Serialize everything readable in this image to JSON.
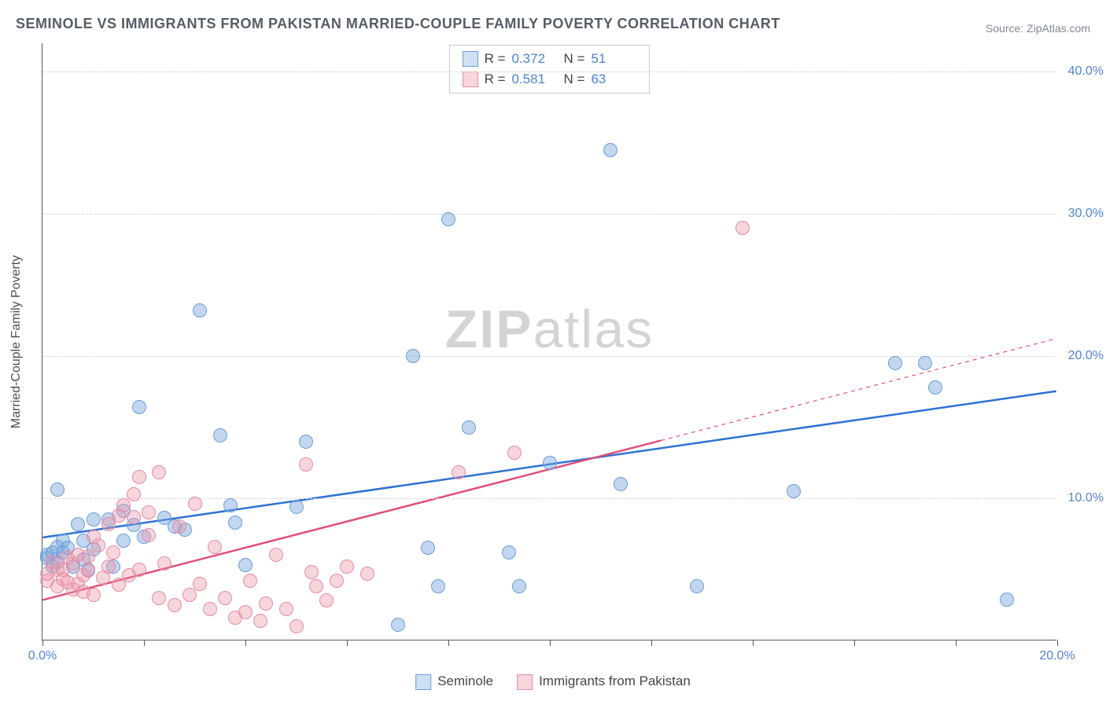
{
  "title": "SEMINOLE VS IMMIGRANTS FROM PAKISTAN MARRIED-COUPLE FAMILY POVERTY CORRELATION CHART",
  "source": "Source: ZipAtlas.com",
  "watermark_prefix": "ZIP",
  "watermark_suffix": "atlas",
  "ylabel": "Married-Couple Family Poverty",
  "chart": {
    "type": "scatter",
    "xlim": [
      0,
      20
    ],
    "ylim": [
      0,
      42
    ],
    "x_ticks_labeled": [
      0,
      20
    ],
    "x_ticks_minor": [
      2,
      4,
      6,
      8,
      10,
      12,
      14,
      16,
      18
    ],
    "y_ticks": [
      10,
      20,
      30,
      40
    ],
    "x_tick_format": "pct1",
    "y_tick_format": "pct1",
    "grid_color": "#d8d8d8",
    "marker_radius": 9,
    "series": [
      {
        "name": "Seminole",
        "fill": "rgba(120,165,220,0.45)",
        "stroke": "#6a9ed8",
        "swatch_fill": "#cfe0f4",
        "swatch_stroke": "#6a9ed8",
        "R": 0.372,
        "N": 51,
        "trend": {
          "x1": 0,
          "y1": 7.2,
          "x2": 20,
          "y2": 17.5,
          "color": "#2d72d2",
          "width": 2.5,
          "dashed_from_x": null
        },
        "points": [
          [
            0.1,
            6.0
          ],
          [
            0.1,
            5.8
          ],
          [
            0.2,
            6.2
          ],
          [
            0.3,
            5.5
          ],
          [
            0.3,
            6.6
          ],
          [
            0.3,
            10.6
          ],
          [
            0.4,
            7.0
          ],
          [
            0.4,
            6.2
          ],
          [
            0.5,
            6.5
          ],
          [
            0.6,
            5.2
          ],
          [
            0.7,
            8.2
          ],
          [
            0.8,
            5.7
          ],
          [
            0.8,
            7.0
          ],
          [
            0.9,
            5.0
          ],
          [
            1.0,
            6.4
          ],
          [
            1.0,
            8.5
          ],
          [
            1.3,
            8.5
          ],
          [
            1.4,
            5.2
          ],
          [
            1.6,
            7.0
          ],
          [
            1.6,
            9.1
          ],
          [
            1.8,
            8.1
          ],
          [
            1.9,
            16.4
          ],
          [
            2.0,
            7.3
          ],
          [
            2.4,
            8.6
          ],
          [
            2.6,
            8.0
          ],
          [
            2.8,
            7.8
          ],
          [
            3.1,
            23.2
          ],
          [
            3.5,
            14.4
          ],
          [
            3.7,
            9.5
          ],
          [
            3.8,
            8.3
          ],
          [
            4.0,
            5.3
          ],
          [
            5.0,
            9.4
          ],
          [
            5.2,
            14.0
          ],
          [
            7.0,
            1.1
          ],
          [
            7.3,
            20.0
          ],
          [
            7.6,
            6.5
          ],
          [
            7.8,
            3.8
          ],
          [
            8.0,
            29.6
          ],
          [
            8.4,
            15.0
          ],
          [
            9.2,
            6.2
          ],
          [
            9.4,
            3.8
          ],
          [
            10.0,
            12.5
          ],
          [
            11.2,
            34.5
          ],
          [
            11.4,
            11.0
          ],
          [
            12.9,
            3.8
          ],
          [
            14.8,
            10.5
          ],
          [
            16.8,
            19.5
          ],
          [
            17.4,
            19.5
          ],
          [
            17.6,
            17.8
          ],
          [
            19.0,
            2.9
          ],
          [
            0.2,
            5.2
          ]
        ]
      },
      {
        "name": "Immigrants from Pakistan",
        "fill": "rgba(235,150,170,0.40)",
        "stroke": "#e58ba3",
        "swatch_fill": "#f6d5dd",
        "swatch_stroke": "#e58ba3",
        "R": 0.581,
        "N": 63,
        "trend": {
          "x1": 0,
          "y1": 2.8,
          "x2": 20,
          "y2": 21.2,
          "color": "#e04f77",
          "width": 2.5,
          "dashed_from_x": 12.2
        },
        "points": [
          [
            0.1,
            4.7
          ],
          [
            0.1,
            4.2
          ],
          [
            0.2,
            5.5
          ],
          [
            0.3,
            5.0
          ],
          [
            0.3,
            3.8
          ],
          [
            0.4,
            5.0
          ],
          [
            0.4,
            4.3
          ],
          [
            0.5,
            4.1
          ],
          [
            0.5,
            5.8
          ],
          [
            0.6,
            3.6
          ],
          [
            0.6,
            5.4
          ],
          [
            0.7,
            4.0
          ],
          [
            0.7,
            6.0
          ],
          [
            0.8,
            4.6
          ],
          [
            0.8,
            3.4
          ],
          [
            0.9,
            4.9
          ],
          [
            0.9,
            5.9
          ],
          [
            1.0,
            3.2
          ],
          [
            1.0,
            7.3
          ],
          [
            1.1,
            6.7
          ],
          [
            1.2,
            4.4
          ],
          [
            1.3,
            8.2
          ],
          [
            1.3,
            5.2
          ],
          [
            1.4,
            6.2
          ],
          [
            1.5,
            8.8
          ],
          [
            1.5,
            3.9
          ],
          [
            1.6,
            9.5
          ],
          [
            1.7,
            4.6
          ],
          [
            1.8,
            10.3
          ],
          [
            1.8,
            8.7
          ],
          [
            1.9,
            5.0
          ],
          [
            1.9,
            11.5
          ],
          [
            2.1,
            9.0
          ],
          [
            2.1,
            7.4
          ],
          [
            2.3,
            3.0
          ],
          [
            2.3,
            11.8
          ],
          [
            2.4,
            5.4
          ],
          [
            2.6,
            2.5
          ],
          [
            2.7,
            8.0
          ],
          [
            2.9,
            3.2
          ],
          [
            3.0,
            9.6
          ],
          [
            3.1,
            4.0
          ],
          [
            3.3,
            2.2
          ],
          [
            3.4,
            6.6
          ],
          [
            3.6,
            3.0
          ],
          [
            3.8,
            1.6
          ],
          [
            4.0,
            2.0
          ],
          [
            4.1,
            4.2
          ],
          [
            4.3,
            1.4
          ],
          [
            4.4,
            2.6
          ],
          [
            4.6,
            6.0
          ],
          [
            4.8,
            2.2
          ],
          [
            5.0,
            1.0
          ],
          [
            5.2,
            12.4
          ],
          [
            5.3,
            4.8
          ],
          [
            5.4,
            3.8
          ],
          [
            5.6,
            2.8
          ],
          [
            5.8,
            4.2
          ],
          [
            6.0,
            5.2
          ],
          [
            6.4,
            4.7
          ],
          [
            8.2,
            11.8
          ],
          [
            9.3,
            13.2
          ],
          [
            13.8,
            29.0
          ]
        ]
      }
    ]
  }
}
